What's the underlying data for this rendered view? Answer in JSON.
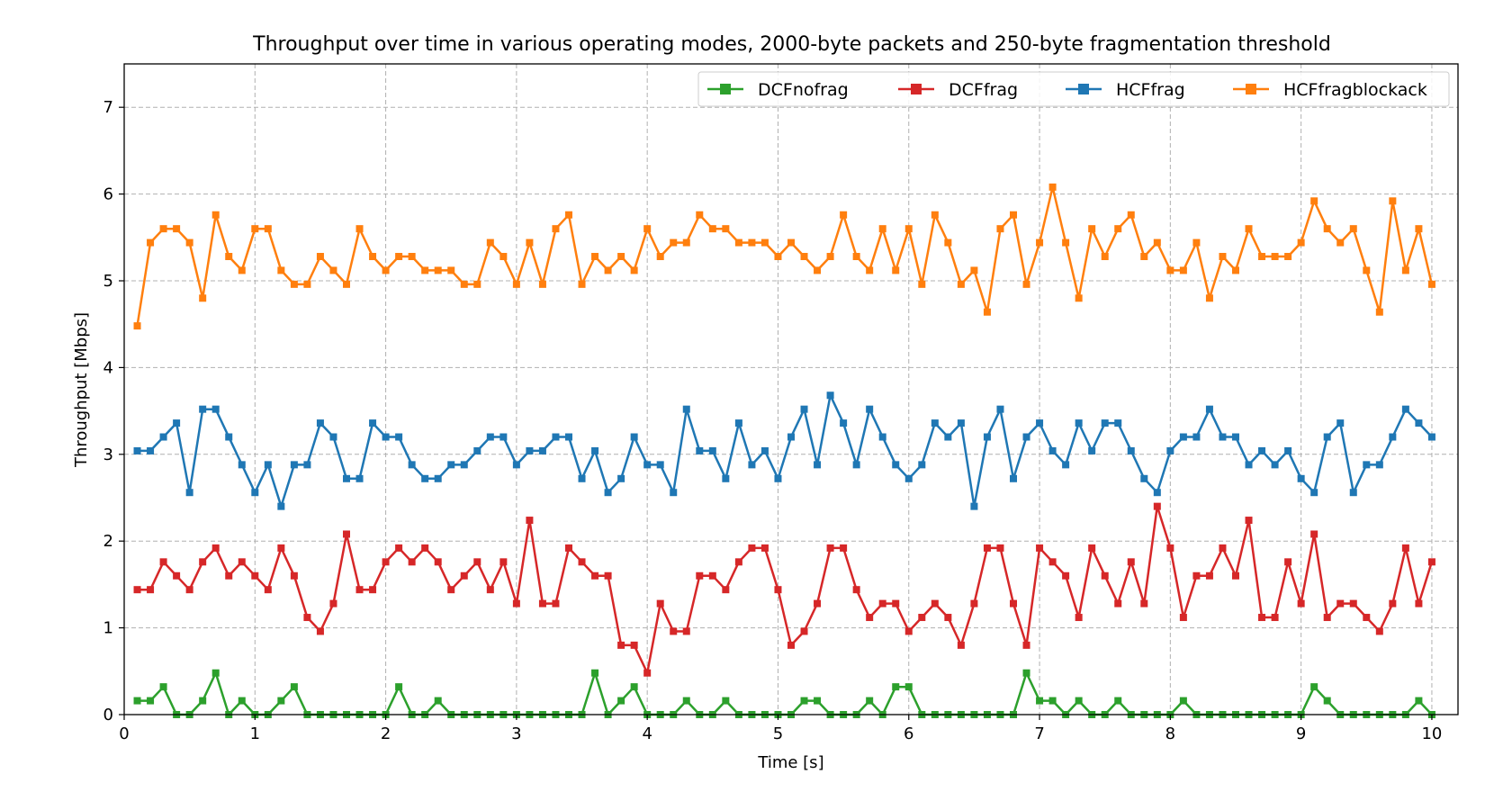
{
  "chart_data": {
    "type": "line",
    "title": "Throughput over time in various operating modes, 2000-byte packets and 250-byte fragmentation threshold",
    "xlabel": "Time [s]",
    "ylabel": "Throughput [Mbps]",
    "xlim": [
      0,
      10.2
    ],
    "ylim": [
      0,
      7.5
    ],
    "x_ticks": [
      0,
      1,
      2,
      3,
      4,
      5,
      6,
      7,
      8,
      9,
      10
    ],
    "x_tick_labels": [
      "0",
      "1",
      "2",
      "3",
      "4",
      "5",
      "6",
      "7",
      "8",
      "9",
      "10"
    ],
    "y_ticks": [
      0,
      1,
      2,
      3,
      4,
      5,
      6,
      7
    ],
    "y_tick_labels": [
      "0",
      "1",
      "2",
      "3",
      "4",
      "5",
      "6",
      "7"
    ],
    "grid": true,
    "legend_position": "top-right",
    "x": [
      0.1,
      0.2,
      0.3,
      0.4,
      0.5,
      0.6,
      0.7,
      0.8,
      0.9,
      1.0,
      1.1,
      1.2,
      1.3,
      1.4,
      1.5,
      1.6,
      1.7,
      1.8,
      1.9,
      2.0,
      2.1,
      2.2,
      2.3,
      2.4,
      2.5,
      2.6,
      2.7,
      2.8,
      2.9,
      3.0,
      3.1,
      3.2,
      3.3,
      3.4,
      3.5,
      3.6,
      3.7,
      3.8,
      3.9,
      4.0,
      4.1,
      4.2,
      4.3,
      4.4,
      4.5,
      4.6,
      4.7,
      4.8,
      4.9,
      5.0,
      5.1,
      5.2,
      5.3,
      5.4,
      5.5,
      5.6,
      5.7,
      5.8,
      5.9,
      6.0,
      6.1,
      6.2,
      6.3,
      6.4,
      6.5,
      6.6,
      6.7,
      6.8,
      6.9,
      7.0,
      7.1,
      7.2,
      7.3,
      7.4,
      7.5,
      7.6,
      7.7,
      7.8,
      7.9,
      8.0,
      8.1,
      8.2,
      8.3,
      8.4,
      8.5,
      8.6,
      8.7,
      8.8,
      8.9,
      9.0,
      9.1,
      9.2,
      9.3,
      9.4,
      9.5,
      9.6,
      9.7,
      9.8,
      9.9,
      10.0
    ],
    "series": [
      {
        "name": "DCFnofrag",
        "color": "#2ca02c",
        "values": [
          0.16,
          0.16,
          0.32,
          0,
          0,
          0.16,
          0.48,
          0,
          0.16,
          0,
          0,
          0.16,
          0.32,
          0,
          0,
          0,
          0,
          0,
          0,
          0,
          0.32,
          0,
          0,
          0.16,
          0,
          0,
          0,
          0,
          0,
          0,
          0,
          0,
          0,
          0,
          0,
          0.48,
          0,
          0.16,
          0.32,
          0,
          0,
          0,
          0.16,
          0,
          0,
          0.16,
          0,
          0,
          0,
          0,
          0,
          0.16,
          0.16,
          0,
          0,
          0,
          0.16,
          0,
          0.32,
          0.32,
          0,
          0,
          0,
          0,
          0,
          0,
          0,
          0,
          0.48,
          0.16,
          0.16,
          0,
          0.16,
          0,
          0,
          0.16,
          0,
          0,
          0,
          0,
          0.16,
          0,
          0,
          0,
          0,
          0,
          0,
          0,
          0,
          0,
          0.32,
          0.16,
          0,
          0,
          0,
          0,
          0,
          0,
          0.16,
          0
        ]
      },
      {
        "name": "DCFfrag",
        "color": "#d62728",
        "values": [
          1.44,
          1.44,
          1.76,
          1.6,
          1.44,
          1.76,
          1.92,
          1.6,
          1.76,
          1.6,
          1.44,
          1.92,
          1.6,
          1.12,
          0.96,
          1.28,
          2.08,
          1.44,
          1.44,
          1.76,
          1.92,
          1.76,
          1.92,
          1.76,
          1.44,
          1.6,
          1.76,
          1.44,
          1.76,
          1.28,
          2.24,
          1.28,
          1.28,
          1.92,
          1.76,
          1.6,
          1.6,
          0.8,
          0.8,
          0.48,
          1.28,
          0.96,
          0.96,
          1.6,
          1.6,
          1.44,
          1.76,
          1.92,
          1.92,
          1.44,
          0.8,
          0.96,
          1.28,
          1.92,
          1.92,
          1.44,
          1.12,
          1.28,
          1.28,
          0.96,
          1.12,
          1.28,
          1.12,
          0.8,
          1.28,
          1.92,
          1.92,
          1.28,
          0.8,
          1.92,
          1.76,
          1.6,
          1.12,
          1.92,
          1.6,
          1.28,
          1.76,
          1.28,
          2.4,
          1.92,
          1.12,
          1.6,
          1.6,
          1.92,
          1.6,
          2.24,
          1.12,
          1.12,
          1.76,
          1.28,
          2.08,
          1.12,
          1.28,
          1.28,
          1.12,
          0.96,
          1.28,
          1.92,
          1.28,
          1.76
        ]
      },
      {
        "name": "HCFfrag",
        "color": "#1f77b4",
        "values": [
          3.04,
          3.04,
          3.2,
          3.36,
          2.56,
          3.52,
          3.52,
          3.2,
          2.88,
          2.56,
          2.88,
          2.4,
          2.88,
          2.88,
          3.36,
          3.2,
          2.72,
          2.72,
          3.36,
          3.2,
          3.2,
          2.88,
          2.72,
          2.72,
          2.88,
          2.88,
          3.04,
          3.2,
          3.2,
          2.88,
          3.04,
          3.04,
          3.2,
          3.2,
          2.72,
          3.04,
          2.56,
          2.72,
          3.2,
          2.88,
          2.88,
          2.56,
          3.52,
          3.04,
          3.04,
          2.72,
          3.36,
          2.88,
          3.04,
          2.72,
          3.2,
          3.52,
          2.88,
          3.68,
          3.36,
          2.88,
          3.52,
          3.2,
          2.88,
          2.72,
          2.88,
          3.36,
          3.2,
          3.36,
          2.4,
          3.2,
          3.52,
          2.72,
          3.2,
          3.36,
          3.04,
          2.88,
          3.36,
          3.04,
          3.36,
          3.36,
          3.04,
          2.72,
          2.56,
          3.04,
          3.2,
          3.2,
          3.52,
          3.2,
          3.2,
          2.88,
          3.04,
          2.88,
          3.04,
          2.72,
          2.56,
          3.2,
          3.36,
          2.56,
          2.88,
          2.88,
          3.2,
          3.52,
          3.36,
          3.2
        ]
      },
      {
        "name": "HCFfragblockack",
        "color": "#ff7f0e",
        "values": [
          4.48,
          5.44,
          5.6,
          5.6,
          5.44,
          4.8,
          5.76,
          5.28,
          5.12,
          5.6,
          5.6,
          5.12,
          4.96,
          4.96,
          5.28,
          5.12,
          4.96,
          5.6,
          5.28,
          5.12,
          5.28,
          5.28,
          5.12,
          5.12,
          5.12,
          4.96,
          4.96,
          5.44,
          5.28,
          4.96,
          5.44,
          4.96,
          5.6,
          5.76,
          4.96,
          5.28,
          5.12,
          5.28,
          5.12,
          5.6,
          5.28,
          5.44,
          5.44,
          5.76,
          5.6,
          5.6,
          5.44,
          5.44,
          5.44,
          5.28,
          5.44,
          5.28,
          5.12,
          5.28,
          5.76,
          5.28,
          5.12,
          5.6,
          5.12,
          5.6,
          4.96,
          5.76,
          5.44,
          4.96,
          5.12,
          4.64,
          5.6,
          5.76,
          4.96,
          5.44,
          6.08,
          5.44,
          4.8,
          5.6,
          5.28,
          5.6,
          5.76,
          5.28,
          5.44,
          5.12,
          5.12,
          5.44,
          4.8,
          5.28,
          5.12,
          5.6,
          5.28,
          5.28,
          5.28,
          5.44,
          5.92,
          5.6,
          5.44,
          5.6,
          5.12,
          4.64,
          5.92,
          5.12,
          5.6,
          4.96
        ]
      }
    ]
  }
}
